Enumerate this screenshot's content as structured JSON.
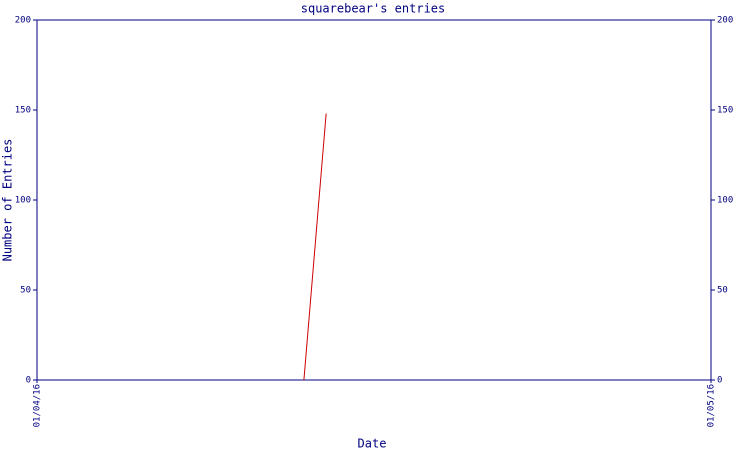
{
  "chart_data": {
    "type": "line",
    "title": "squarebear's entries",
    "x_label": "Date",
    "y_label": "Number of Entries",
    "x": [
      0.396,
      0.429
    ],
    "series": [
      {
        "color": "#cc0000",
        "values": [
          0,
          148
        ]
      }
    ],
    "xlim": [
      0,
      1
    ],
    "xticks": [
      {
        "value": 0,
        "label": "01/04/16"
      },
      {
        "value": 1,
        "label": "01/05/16"
      }
    ],
    "ylim": [
      0,
      200
    ],
    "yticks": [
      0,
      50,
      100,
      150,
      200
    ],
    "y2lim": [
      0,
      200
    ],
    "y2ticks": [
      0,
      50,
      100,
      150,
      200
    ],
    "axis_color": "#000080"
  }
}
